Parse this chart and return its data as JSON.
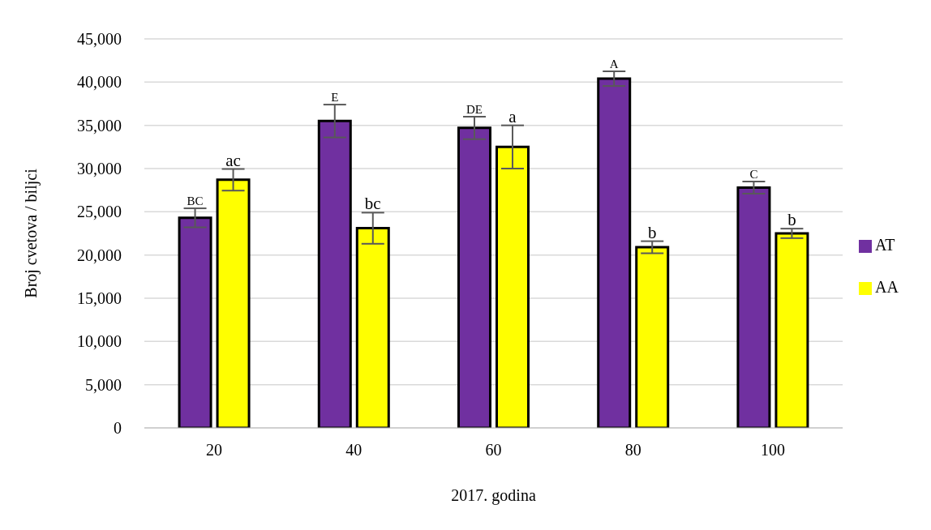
{
  "chart_data": {
    "type": "bar",
    "ylabel": "Broj cvetova / biljci",
    "xlabel": "2017. godina",
    "categories": [
      "20",
      "40",
      "60",
      "80",
      "100"
    ],
    "series": [
      {
        "name": "AT",
        "color": "#7030a0",
        "values": [
          24300,
          35500,
          34700,
          40400,
          27800
        ],
        "errors": [
          1100,
          1900,
          1300,
          850,
          700
        ],
        "value_labels": [
          "BC",
          "E",
          "DE",
          "A",
          "C"
        ]
      },
      {
        "name": "AA",
        "color": "#ffff00",
        "values": [
          28700,
          23100,
          32500,
          20900,
          22500
        ],
        "errors": [
          1250,
          1800,
          2500,
          700,
          550
        ],
        "value_labels": [
          "ac",
          "bc",
          "a",
          "b",
          "b"
        ]
      }
    ],
    "ylim": [
      0,
      45000
    ],
    "yticks": [
      0,
      {
        "value": 5000,
        "label": "5,000"
      },
      {
        "value": 10000,
        "label": "10,000"
      },
      {
        "value": 15000,
        "label": "15,000"
      },
      {
        "value": 20000,
        "label": "20,000"
      },
      {
        "value": 25000,
        "label": "25,000"
      },
      {
        "value": 30000,
        "label": "30,000"
      },
      {
        "value": 35000,
        "label": "35,000"
      },
      {
        "value": 40000,
        "label": "40,000"
      },
      {
        "value": 45000,
        "label": "45,000"
      }
    ],
    "grid": "y",
    "legend": "right"
  }
}
